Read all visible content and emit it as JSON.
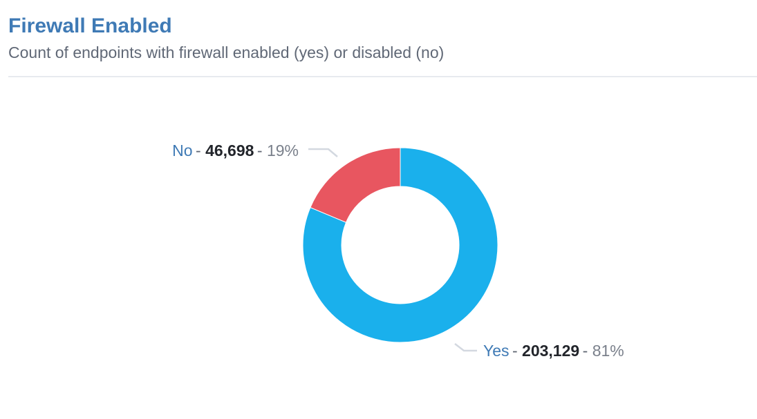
{
  "header": {
    "title": "Firewall Enabled",
    "subtitle": "Count of endpoints with firewall enabled (yes) or disabled (no)"
  },
  "chart_data": {
    "type": "pie",
    "donut": true,
    "slices": [
      {
        "name": "Yes",
        "value": 203129,
        "value_label": "203,129",
        "percent_label": "81%",
        "color": "#1ab0ec"
      },
      {
        "name": "No",
        "value": 46698,
        "value_label": "46,698",
        "percent_label": "19%",
        "color": "#e85660"
      }
    ],
    "label_separator": "-",
    "connector_color": "#d3d8e0"
  }
}
